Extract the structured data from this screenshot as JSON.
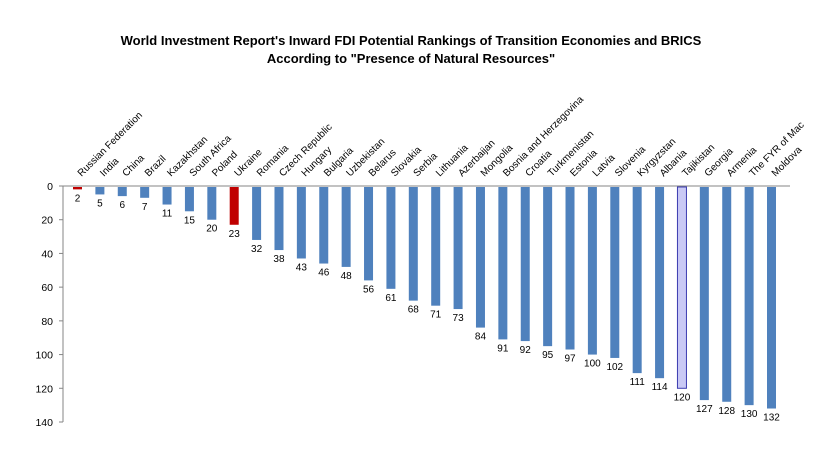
{
  "chart_data": {
    "type": "bar",
    "title": "World Investment Report's Inward FDI Potential Rankings of Transition Economies and BRICS",
    "subtitle": "According to \"Presence of Natural Resources\"",
    "xlabel": "",
    "ylabel": "",
    "y_axis_inverted": true,
    "ylim": [
      0,
      140
    ],
    "yticks": [
      0,
      20,
      40,
      60,
      80,
      100,
      120,
      140
    ],
    "grid": false,
    "legend": "none",
    "categories": [
      "Russian Federation",
      "India",
      "China",
      "Brazil",
      "Kazakhstan",
      "South Africa",
      "Poland",
      "Ukraine",
      "Romania",
      "Czech Republic",
      "Hungary",
      "Bulgaria",
      "Uzbekistan",
      "Belarus",
      "Slovakia",
      "Serbia",
      "Lithuania",
      "Azerbaijan",
      "Mongolia",
      "Bosnia and Herzegovina",
      "Croatia",
      "Turkmenistan",
      "Estonia",
      "Latvia",
      "Slovenia",
      "Kyrgyzstan",
      "Albania",
      "Tajikistan",
      "Georgia",
      "Armenia",
      "The FYR of Mac",
      "Moldova"
    ],
    "values": [
      2,
      5,
      6,
      7,
      11,
      15,
      20,
      23,
      32,
      38,
      43,
      46,
      48,
      56,
      61,
      68,
      71,
      73,
      84,
      91,
      92,
      95,
      97,
      100,
      102,
      111,
      114,
      120,
      127,
      128,
      130,
      132
    ],
    "colors": {
      "default": "#4f81bd",
      "highlight_red": "#c00000",
      "highlight_light": "#c9c9f5",
      "highlight_light_border": "#3b3bb0"
    },
    "highlight_red": [
      "Russian Federation",
      "Ukraine"
    ],
    "highlight_light": [
      "Tajikistan"
    ]
  }
}
